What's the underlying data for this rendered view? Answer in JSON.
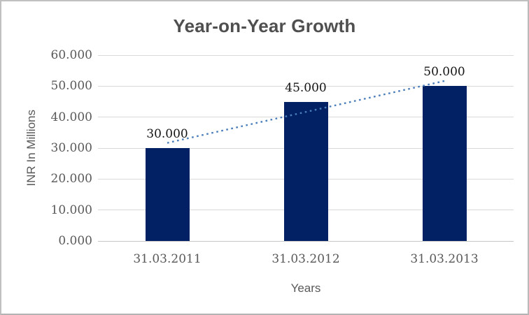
{
  "chart_data": {
    "type": "bar",
    "title": "Year-on-Year Growth",
    "categories": [
      "31.03.2011",
      "31.03.2012",
      "31.03.2013"
    ],
    "values": [
      30,
      45,
      50
    ],
    "data_labels": [
      "30.000",
      "45.000",
      "50.000"
    ],
    "xlabel": "Years",
    "ylabel": "INR In Millions",
    "ylim": [
      0,
      60
    ],
    "yticks": [
      {
        "value": 0,
        "label": "0.000"
      },
      {
        "value": 10,
        "label": "10.000"
      },
      {
        "value": 20,
        "label": "20.000"
      },
      {
        "value": 30,
        "label": "30.000"
      },
      {
        "value": 40,
        "label": "40.000"
      },
      {
        "value": 50,
        "label": "50.000"
      },
      {
        "value": 60,
        "label": "60.000"
      }
    ],
    "grid": true,
    "legend": "none",
    "trendline": {
      "type": "linear",
      "style": "dotted",
      "fitted_values": [
        31.667,
        41.667,
        51.667
      ]
    },
    "colors": {
      "bar": "#022164",
      "trendline": "#4a7ebb",
      "gridline": "#d9d9d9",
      "axis_line": "#c6c6c6",
      "title_text": "#4f4f4f",
      "axis_text": "#595959",
      "data_label_text": "#141414",
      "background": "#ffffff",
      "chart_border": "#c0c0c0"
    }
  }
}
